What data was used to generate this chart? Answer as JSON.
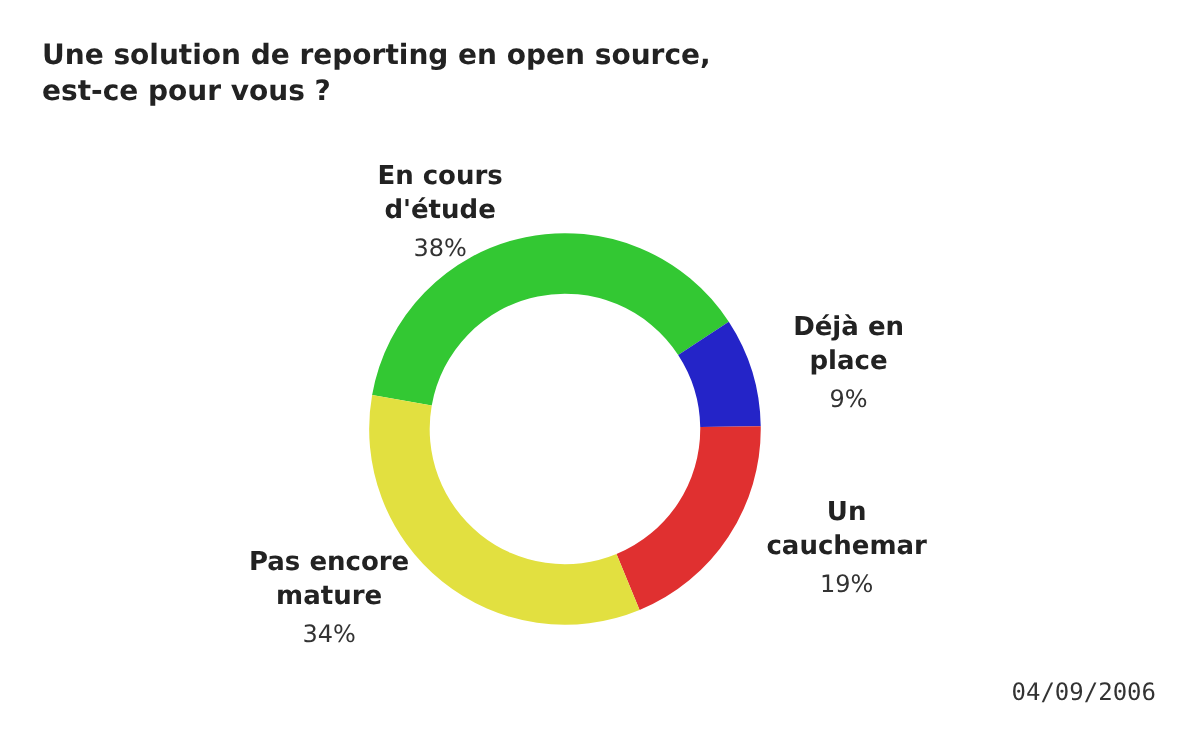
{
  "chart_data": {
    "type": "donut",
    "title": "Une solution de reporting en open source, est-ce pour vous ?",
    "categories": [
      "En cours d'étude",
      "Déjà en place",
      "Un cauchemar",
      "Pas encore mature"
    ],
    "values": [
      38,
      9,
      19,
      34
    ],
    "colors": [
      "#33c833",
      "#2424c8",
      "#e03030",
      "#e2e040"
    ],
    "annotations": [
      "04/09/2006"
    ],
    "value_labels": [
      "38%",
      "9%",
      "19%",
      "34%"
    ],
    "legend": false
  }
}
